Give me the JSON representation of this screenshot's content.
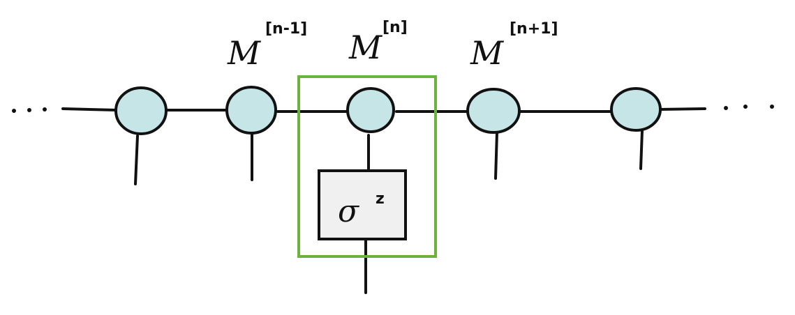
{
  "tensors": [
    {
      "base": "M",
      "sup": "[n-1]"
    },
    {
      "base": "M",
      "sup": "[n]"
    },
    {
      "base": "M",
      "sup": "[n+1]"
    }
  ],
  "operator": {
    "base": "σ",
    "sup": "z"
  },
  "colors": {
    "node_fill": "#c6e5e6",
    "stroke": "#111111",
    "highlight": "#6cb33e",
    "operator_fill": "#f0f0f0"
  }
}
